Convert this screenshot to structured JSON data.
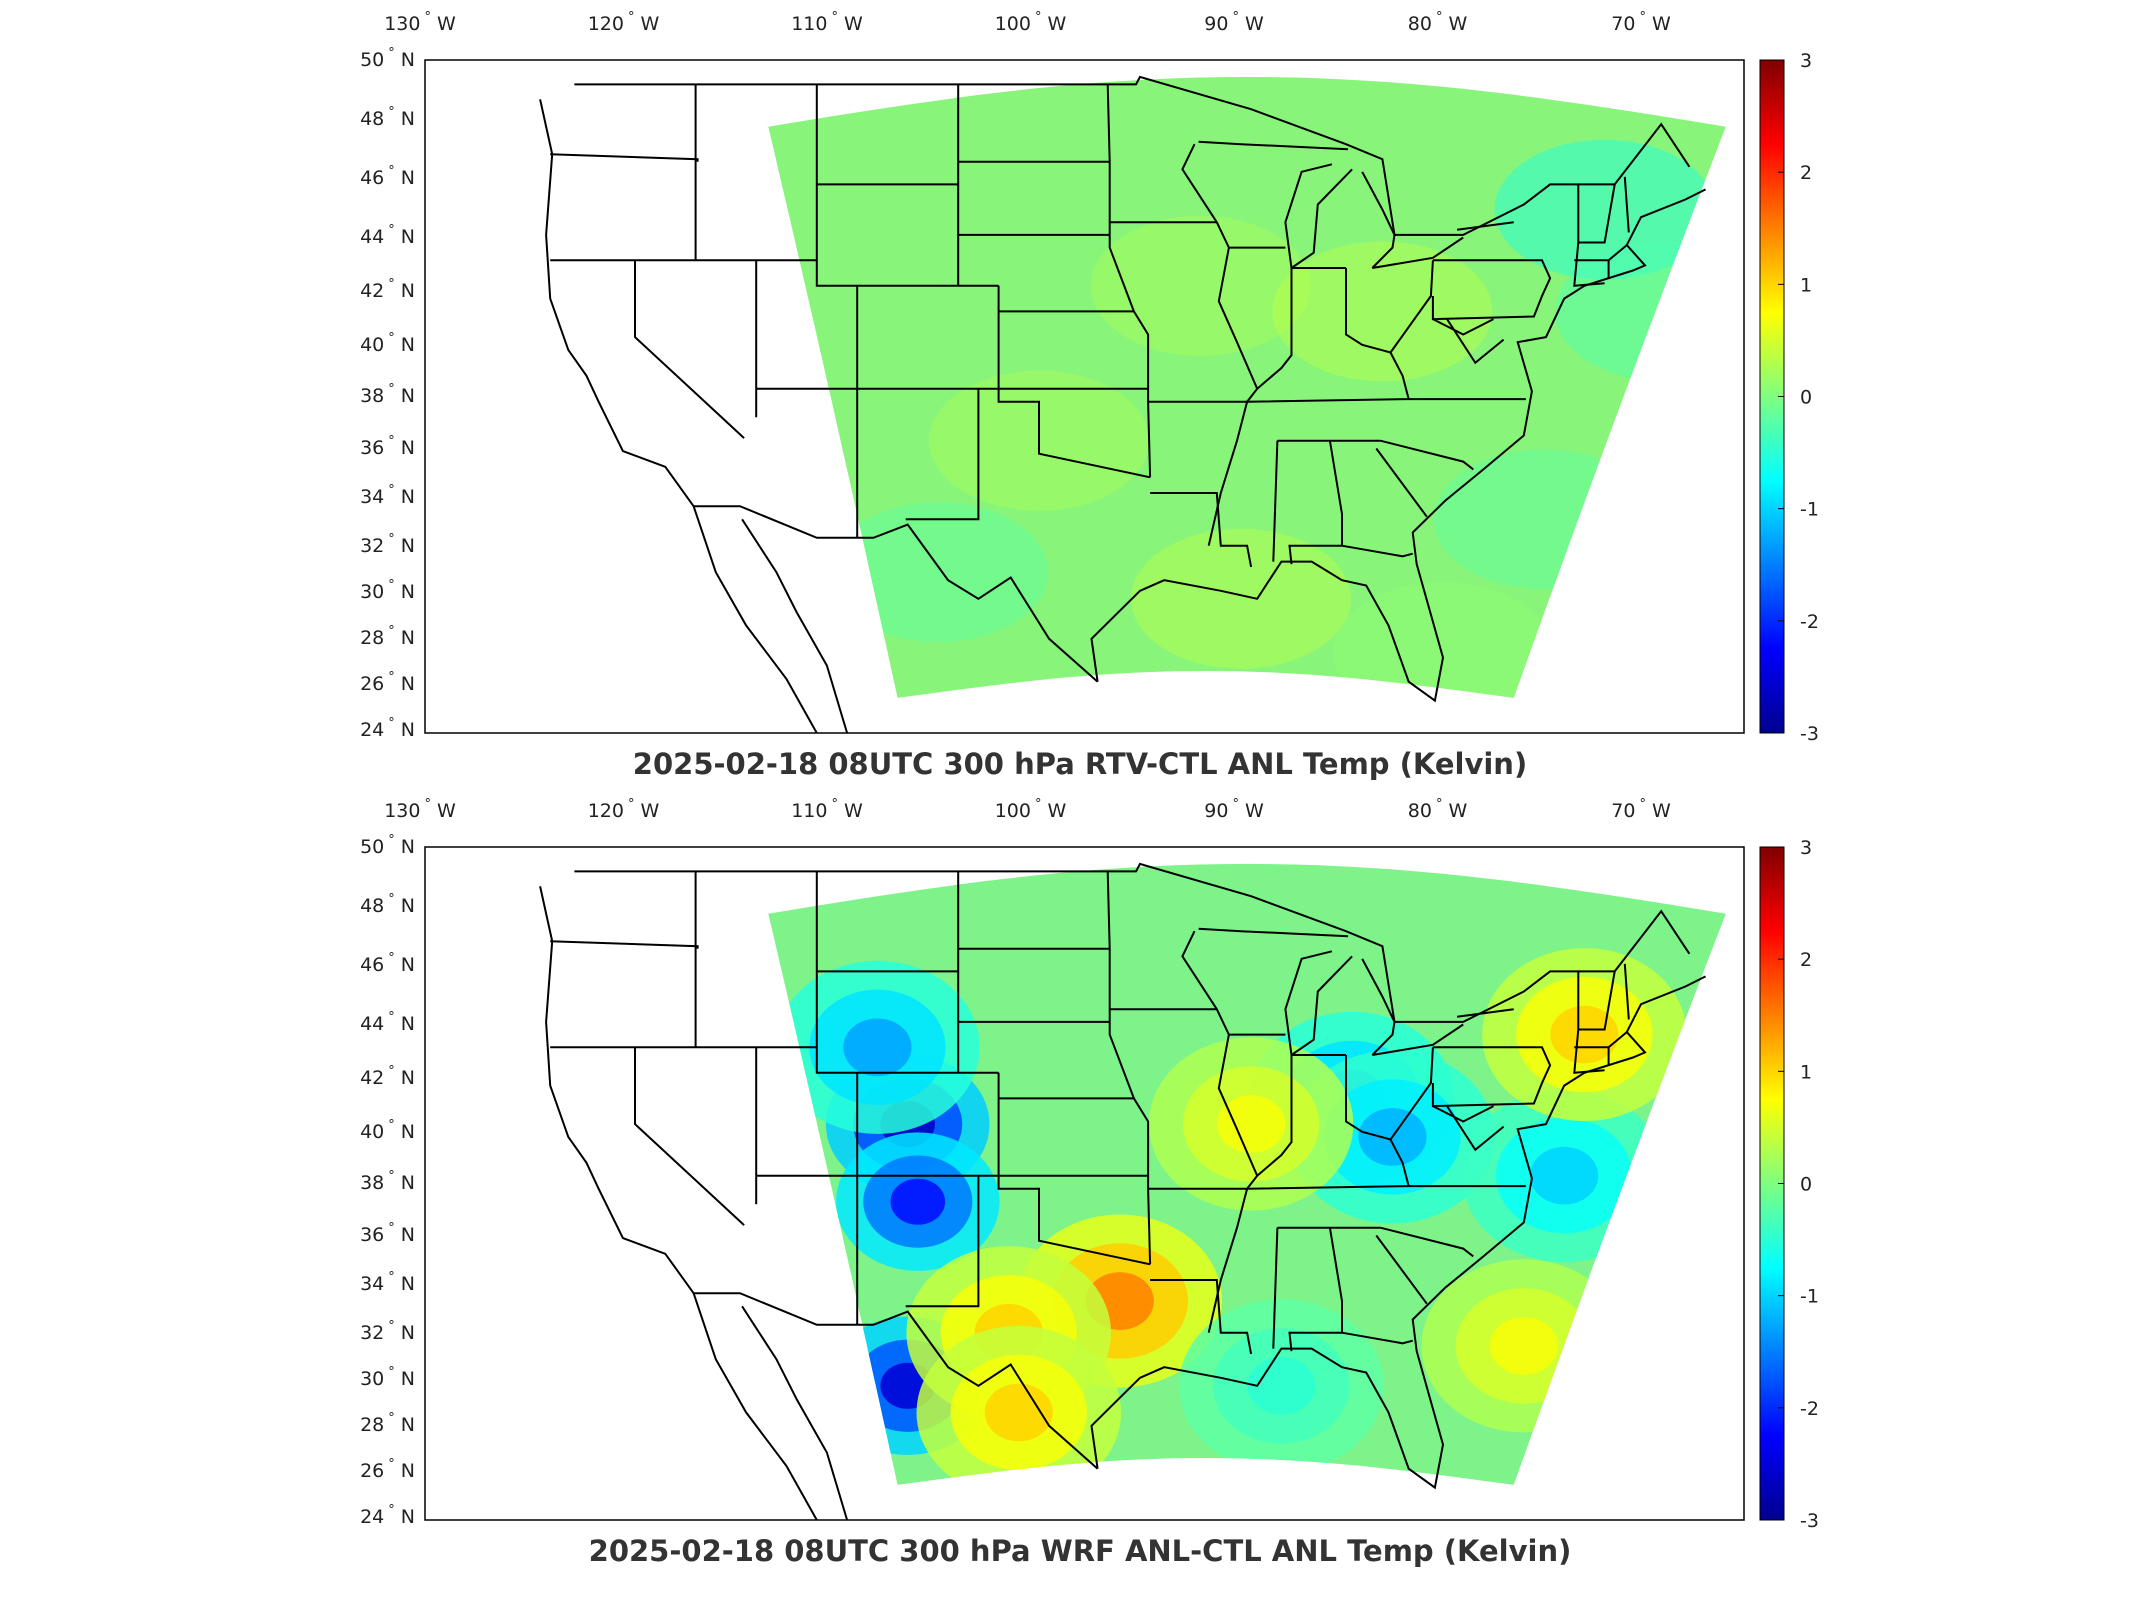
{
  "figure": {
    "panels": [
      {
        "title": "2025-02-18 08UTC 300 hPa RTV-CTL ANL Temp (Kelvin)",
        "field_description_kind": "mostly-uniform-near-zero"
      },
      {
        "title": "2025-02-18 08UTC 300 hPa WRF ANL-CTL ANL Temp (Kelvin)",
        "field_description_kind": "structured"
      }
    ],
    "longitude_labels": [
      "130",
      "120",
      "110",
      "100",
      "90",
      "80",
      "70"
    ],
    "longitude_suffix": "W",
    "latitude_labels": [
      "50",
      "48",
      "46",
      "44",
      "42",
      "40",
      "38",
      "36",
      "34",
      "32",
      "30",
      "28",
      "26",
      "24"
    ],
    "latitude_suffix": "N",
    "colorbar_ticks": [
      "3",
      "2",
      "1",
      "0",
      "-1",
      "-2",
      "-3"
    ],
    "colorbar_range": [
      -3,
      3
    ],
    "colormap": "jet",
    "colors": {
      "background_field": "#7df07a",
      "coast_lines": "#000000"
    },
    "panel2_anomalies": [
      {
        "lon": -106.5,
        "lat": 39.0,
        "value": -2.6
      },
      {
        "lon": -106.0,
        "lat": 36.0,
        "value": -2.2
      },
      {
        "lon": -106.5,
        "lat": 29.0,
        "value": -2.5
      },
      {
        "lon": -108.0,
        "lat": 42.0,
        "value": -1.3
      },
      {
        "lon": -96.0,
        "lat": 32.2,
        "value": 1.5
      },
      {
        "lon": -101.5,
        "lat": 31.0,
        "value": 1.0
      },
      {
        "lon": -101.0,
        "lat": 28.0,
        "value": 1.0
      },
      {
        "lon": -84.5,
        "lat": 40.0,
        "value": -1.3
      },
      {
        "lon": -82.5,
        "lat": 38.5,
        "value": -1.2
      },
      {
        "lon": -74.0,
        "lat": 37.0,
        "value": -1.0
      },
      {
        "lon": -76.0,
        "lat": 30.5,
        "value": 0.7
      },
      {
        "lon": -89.5,
        "lat": 39.0,
        "value": 0.7
      },
      {
        "lon": -88.0,
        "lat": 29.0,
        "value": -0.5
      },
      {
        "lon": -73.0,
        "lat": 42.5,
        "value": 1.0
      }
    ]
  }
}
